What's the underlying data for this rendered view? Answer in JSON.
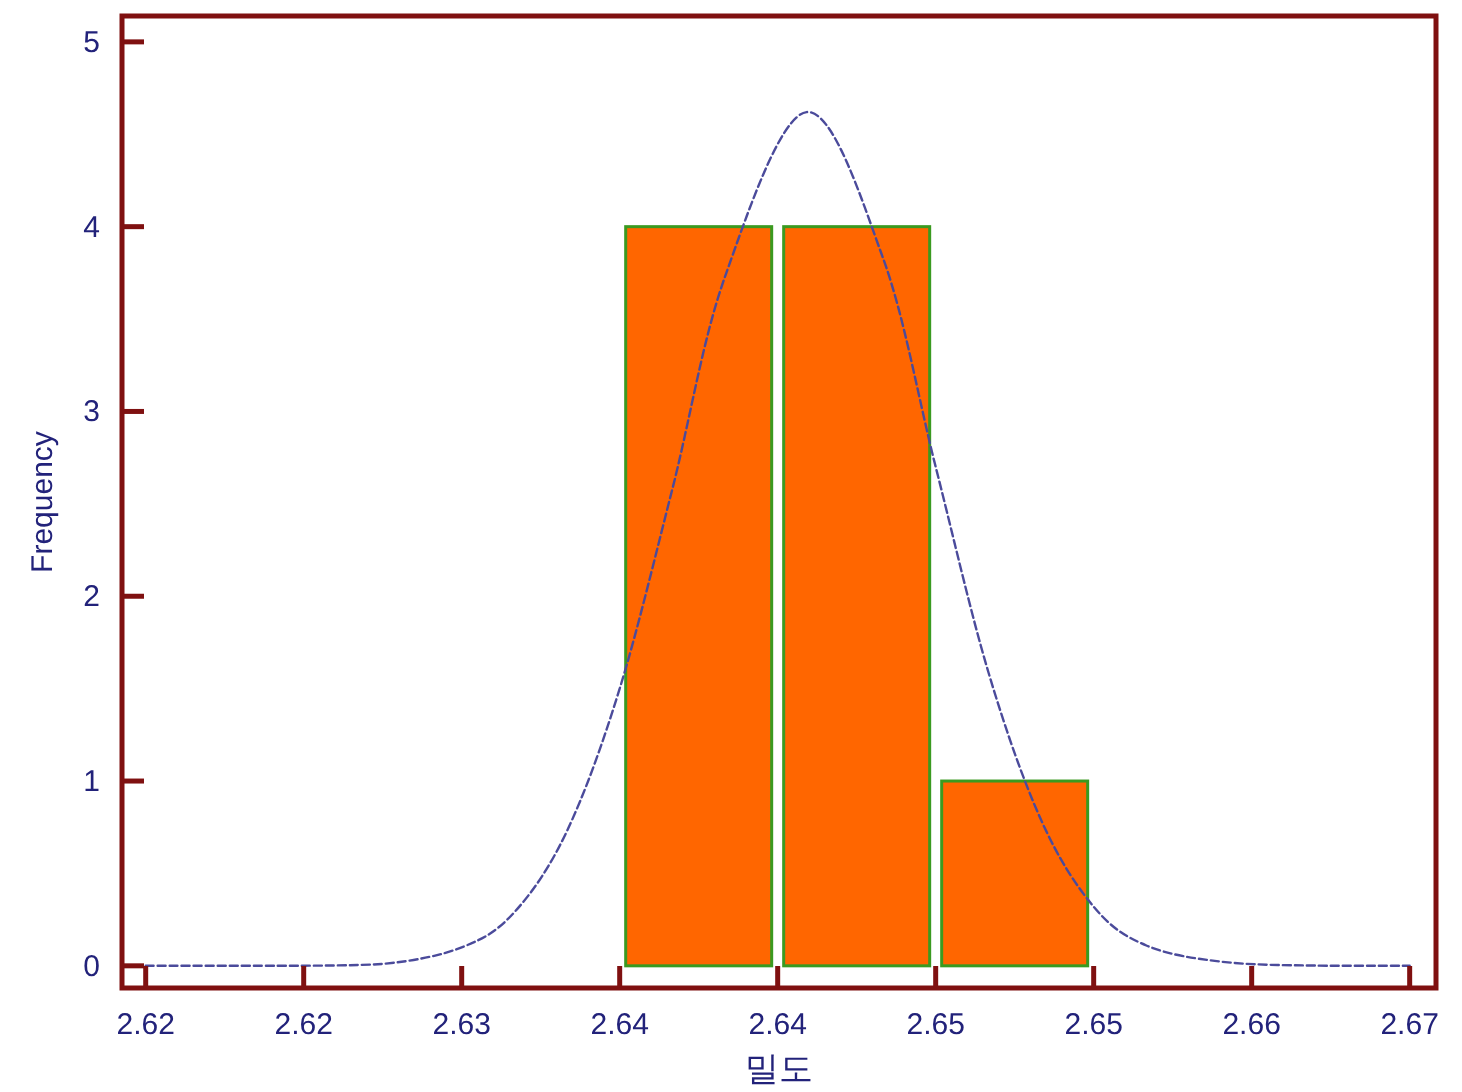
{
  "chart_data": {
    "type": "histogram",
    "xlabel": "밀도",
    "ylabel": "Frequency",
    "bins": [
      2.6365,
      2.6425,
      2.6485,
      2.6545
    ],
    "series": [
      {
        "color": "#ff6600",
        "values": [
          4,
          4,
          1
        ]
      },
      {
        "type": "line",
        "color": "#4b4b9b",
        "line_style": "dashed",
        "x": [
          2.6185,
          2.6235,
          2.6275,
          2.6305,
          2.6325,
          2.6345,
          2.6365,
          2.6385,
          2.6405,
          2.6436,
          2.6465,
          2.6485,
          2.6505,
          2.6525,
          2.6545,
          2.6565,
          2.6595,
          2.6635,
          2.6665
        ],
        "values": [
          0,
          0,
          0.01,
          0.1,
          0.29,
          0.73,
          1.5,
          2.58,
          3.73,
          4.62,
          3.83,
          2.7,
          1.59,
          0.79,
          0.32,
          0.11,
          0.02,
          0,
          0
        ]
      }
    ],
    "xlim": [
      2.6176,
      2.6675
    ],
    "ylim": [
      -0.12,
      5.14
    ],
    "xticks": [
      {
        "value": 2.6185,
        "label": "2.62"
      },
      {
        "value": 2.6245,
        "label": "2.62"
      },
      {
        "value": 2.6305,
        "label": "2.63"
      },
      {
        "value": 2.6365,
        "label": "2.64"
      },
      {
        "value": 2.6425,
        "label": "2.64"
      },
      {
        "value": 2.6485,
        "label": "2.65"
      },
      {
        "value": 2.6545,
        "label": "2.65"
      },
      {
        "value": 2.6605,
        "label": "2.66"
      },
      {
        "value": 2.6665,
        "label": "2.67"
      }
    ],
    "yticks": [
      0,
      1,
      2,
      3,
      4,
      5
    ]
  }
}
